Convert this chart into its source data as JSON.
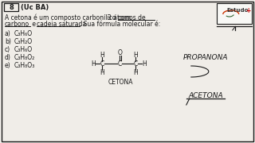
{
  "bg_color": "#f0ede8",
  "text_color": "#1a1a1a",
  "border_color": "#111111",
  "title_num": "8",
  "title_suffix": "(Uc BA)",
  "line1a": "A cetona é um composto carbonílico com ",
  "line1b": "3 átomos de",
  "line2a": "carbono",
  "line2b": " e ",
  "line2c": "cadeia saturada",
  "line2d": ". Sua fórmula molecular é:",
  "options": [
    {
      "label": "a)",
      "formula": "C₃H₆O"
    },
    {
      "label": "b)",
      "formula": "C₃H₂O"
    },
    {
      "label": "c)",
      "formula": "C₃H₆O"
    },
    {
      "label": "d)",
      "formula": "C₃H₈O₂"
    },
    {
      "label": "e)",
      "formula": "C₃H₈O₃"
    }
  ],
  "cetona_label": "CETONA",
  "propanona_text": "PROPANONA",
  "acetona_text": "ACETONA",
  "logo_text": "Estudo",
  "logo_plus": "+",
  "fs_main": 6.0,
  "fs_small": 5.5
}
